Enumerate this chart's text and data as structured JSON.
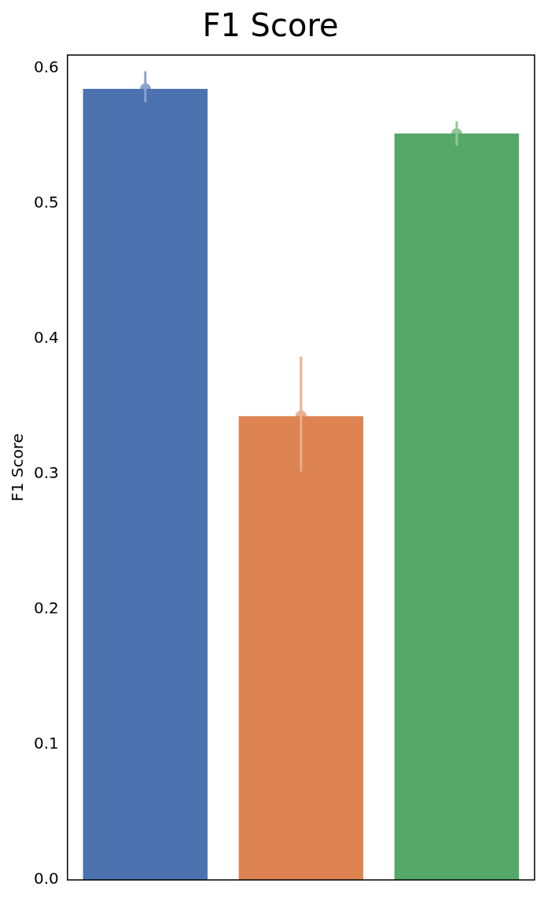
{
  "chart_data": {
    "type": "bar",
    "title": "F1 Score",
    "ylabel": "F1 Score",
    "categories": [
      null,
      null,
      null
    ],
    "values": [
      0.585,
      0.343,
      0.552
    ],
    "colors": [
      "#4c72b0",
      "#dd8452",
      "#55a868"
    ],
    "errors": [
      [
        0.575,
        0.598
      ],
      [
        0.302,
        0.387
      ],
      [
        0.543,
        0.561
      ]
    ],
    "ylim": [
      0,
      0.61
    ],
    "yticks": [
      {
        "value": 0,
        "label": "0.0"
      },
      0.1,
      0.2,
      0.3,
      0.4,
      0.5,
      0.6
    ],
    "tick_labels": "y",
    "grid": false,
    "legend": false
  }
}
